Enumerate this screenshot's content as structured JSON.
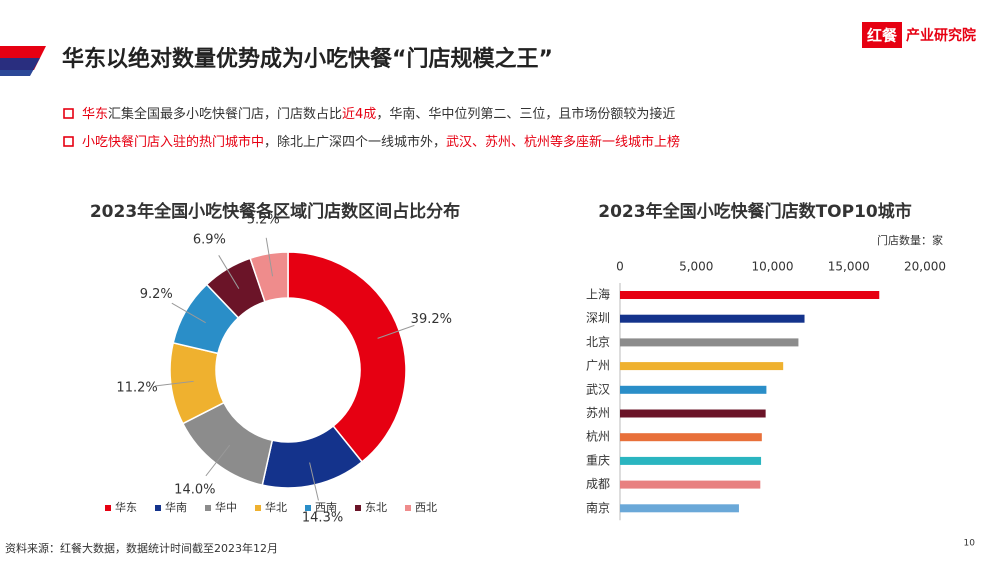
{
  "title": "华东以绝对数量优势成为小吃快餐“门店规模之王”",
  "logo": {
    "brand": "红餐",
    "unit": "产业研究院"
  },
  "bullets": [
    {
      "segments": [
        {
          "text": "华东",
          "highlight": true
        },
        {
          "text": "汇集全国最多小吃快餐门店，门店数占比",
          "highlight": false
        },
        {
          "text": "近4成",
          "highlight": true
        },
        {
          "text": "，华南、华中位列第二、三位，且市场份额较为接近",
          "highlight": false
        }
      ]
    },
    {
      "segments": [
        {
          "text": "小吃快餐门店入驻的热门城市中",
          "highlight": true
        },
        {
          "text": "，除北上广深四个一线城市外，",
          "highlight": false
        },
        {
          "text": "武汉、苏州、杭州等多座新一线城市上榜",
          "highlight": true
        }
      ]
    }
  ],
  "source": "资料来源：红餐大数据，数据统计时间截至2023年12月",
  "page_number": "10",
  "chart_data": [
    {
      "type": "donut",
      "title": "2023年全国小吃快餐各区域门店数区间占比分布",
      "categories": [
        "华东",
        "华南",
        "华中",
        "华北",
        "西南",
        "东北",
        "西北"
      ],
      "values": [
        39.2,
        14.3,
        14.0,
        11.2,
        9.2,
        6.9,
        5.2
      ],
      "value_labels": [
        "39.2%",
        "14.3%",
        "14.0%",
        "11.2%",
        "9.2%",
        "6.9%",
        "5.2%"
      ],
      "colors": [
        "#e60012",
        "#14338c",
        "#8c8c8c",
        "#efb12f",
        "#2a8ec8",
        "#6b1428",
        "#ef8c8c"
      ],
      "legend": "bottom"
    },
    {
      "type": "hbar",
      "title": "2023年全国小吃快餐门店数TOP10城市",
      "xlabel": "门店数量：家",
      "categories": [
        "上海",
        "深圳",
        "北京",
        "广州",
        "武汉",
        "苏州",
        "杭州",
        "重庆",
        "成都",
        "南京"
      ],
      "values": [
        17000,
        12100,
        11700,
        10700,
        9600,
        9550,
        9300,
        9250,
        9200,
        7800
      ],
      "colors": [
        "#e60012",
        "#14338c",
        "#8c8c8c",
        "#efb12f",
        "#2a8ec8",
        "#6b1428",
        "#e8703a",
        "#2ab5c0",
        "#e88080",
        "#6aa8d8"
      ],
      "xlim": [
        0,
        20000
      ],
      "xticks": [
        0,
        {
          "value": 5000,
          "label": "5,000"
        },
        {
          "value": 10000,
          "label": "10,000"
        },
        {
          "value": 15000,
          "label": "15,000"
        },
        {
          "value": 20000,
          "label": "20,000"
        }
      ]
    }
  ]
}
